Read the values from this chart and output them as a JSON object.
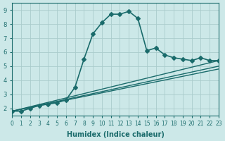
{
  "xlabel": "Humidex (Indice chaleur)",
  "ylabel": "",
  "background_color": "#cce8e8",
  "grid_color": "#aacccc",
  "line_color": "#1a6b6b",
  "xlim": [
    0,
    23
  ],
  "ylim": [
    1.5,
    9.5
  ],
  "xticks": [
    0,
    1,
    2,
    3,
    4,
    5,
    6,
    7,
    8,
    9,
    10,
    11,
    12,
    13,
    14,
    15,
    16,
    17,
    18,
    19,
    20,
    21,
    22,
    23
  ],
  "yticks": [
    2,
    3,
    4,
    5,
    6,
    7,
    8,
    9
  ],
  "series": [
    {
      "x": [
        0,
        1,
        2,
        3,
        4,
        5,
        6,
        7,
        8,
        9,
        10,
        11,
        12,
        13,
        14,
        15,
        16,
        17,
        18,
        19,
        20,
        21,
        22,
        23
      ],
      "y": [
        1.8,
        1.8,
        2.0,
        2.2,
        2.3,
        2.4,
        2.6,
        3.5,
        5.5,
        7.3,
        8.1,
        8.7,
        8.7,
        8.9,
        8.4,
        6.1,
        6.3,
        5.8,
        5.6,
        5.5,
        5.4,
        5.6,
        5.4,
        5.4
      ],
      "marker": "D",
      "markersize": 3,
      "linewidth": 1.2
    },
    {
      "x": [
        0,
        23
      ],
      "y": [
        1.8,
        5.4
      ],
      "marker": "",
      "markersize": 0,
      "linewidth": 1.0
    },
    {
      "x": [
        0,
        23
      ],
      "y": [
        1.8,
        5.0
      ],
      "marker": "",
      "markersize": 0,
      "linewidth": 1.0
    },
    {
      "x": [
        0,
        23
      ],
      "y": [
        1.8,
        4.8
      ],
      "marker": "",
      "markersize": 0,
      "linewidth": 1.0
    }
  ]
}
